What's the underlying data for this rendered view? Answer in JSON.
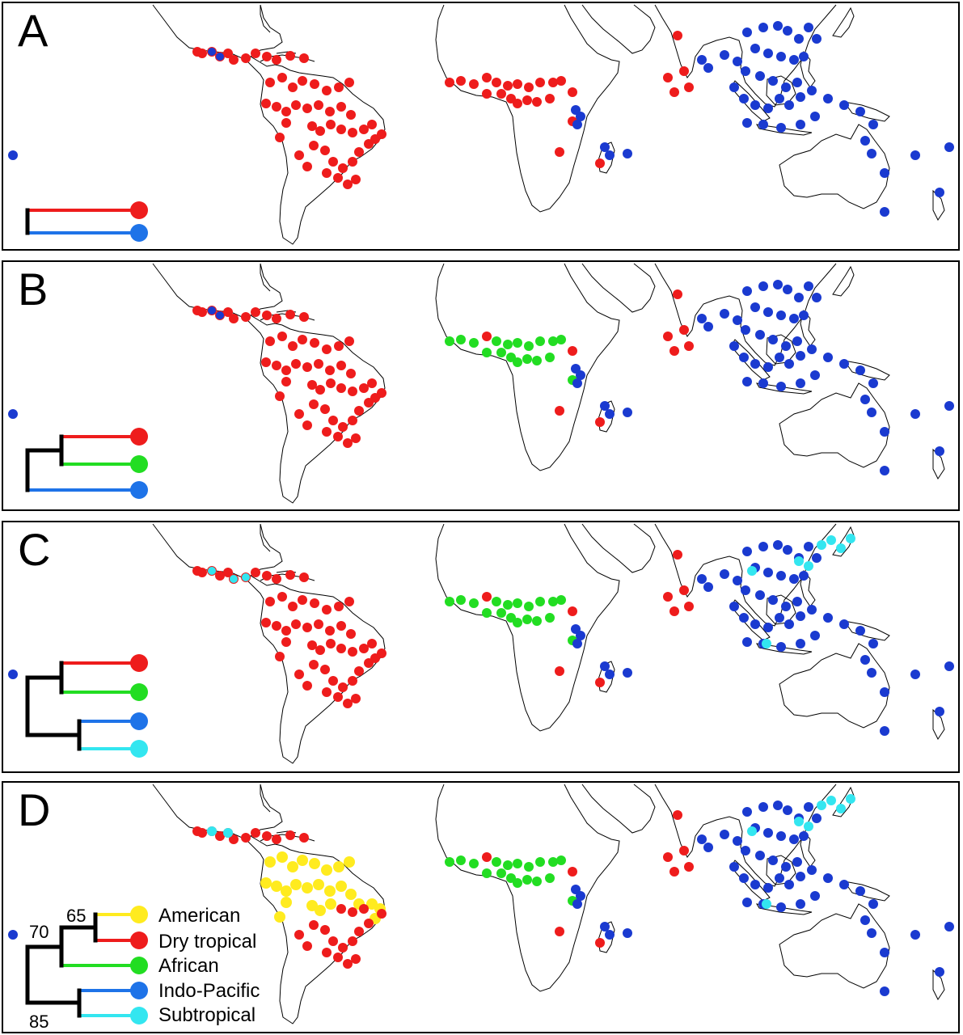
{
  "colors": {
    "american": "#ffeb1f",
    "dry_tropical": "#ee1c1c",
    "african": "#22dd22",
    "indo_pacific": "#1a3ad0",
    "indo_pacific_tree": "#1e73e8",
    "subtropical": "#33e6f0",
    "coast": "#000000"
  },
  "panels": [
    {
      "letter": "A"
    },
    {
      "letter": "B"
    },
    {
      "letter": "C"
    },
    {
      "letter": "D"
    }
  ],
  "legend": {
    "american": "American",
    "dry_tropical": "Dry tropical",
    "african": "African",
    "indo_pacific": "Indo-Pacific",
    "subtropical": "Subtropical"
  },
  "ages": {
    "age_65": "65",
    "age_70": "70",
    "age_85": "85"
  }
}
